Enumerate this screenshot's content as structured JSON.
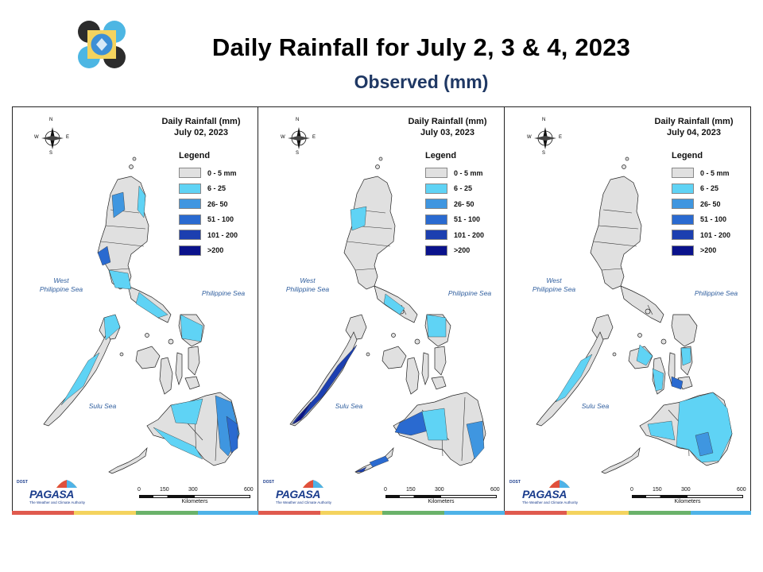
{
  "header": {
    "title": "Daily Rainfall for July 2, 3 & 4, 2023",
    "subtitle": "Observed (mm)"
  },
  "legend": {
    "title": "Legend",
    "items": [
      {
        "label": "0 - 5 mm",
        "color": "#e0e0e0"
      },
      {
        "label": "6 - 25",
        "color": "#5fd3f5"
      },
      {
        "label": "26- 50",
        "color": "#3f96e0"
      },
      {
        "label": "51 - 100",
        "color": "#2a6ad0"
      },
      {
        "label": "101 - 200",
        "color": "#1c3fb0"
      },
      {
        "label": ">200",
        "color": "#0a128c"
      }
    ]
  },
  "panels": [
    {
      "title_line1": "Daily Rainfall (mm)",
      "title_line2": "July 02, 2023"
    },
    {
      "title_line1": "Daily Rainfall (mm)",
      "title_line2": "July 03, 2023"
    },
    {
      "title_line1": "Daily Rainfall (mm)",
      "title_line2": "July 04, 2023"
    }
  ],
  "seas": {
    "west": "West\nPhilippine Sea",
    "east": "Philippine Sea",
    "south": "Sulu Sea"
  },
  "compass": {
    "n": "N",
    "s": "S",
    "e": "E",
    "w": "W"
  },
  "scale": {
    "ticks": [
      "0",
      "150",
      "300",
      "600"
    ],
    "unit": "Kilometers"
  },
  "branding": {
    "dost": "DOST",
    "name": "PAGASA",
    "tagline": "The Weather and Climate Authority"
  },
  "colors": {
    "title": "#000000",
    "subtitle": "#1f3864",
    "stripe": [
      "#e05a4e",
      "#f4d35e",
      "#6ab26a",
      "#4fb3e8"
    ]
  }
}
